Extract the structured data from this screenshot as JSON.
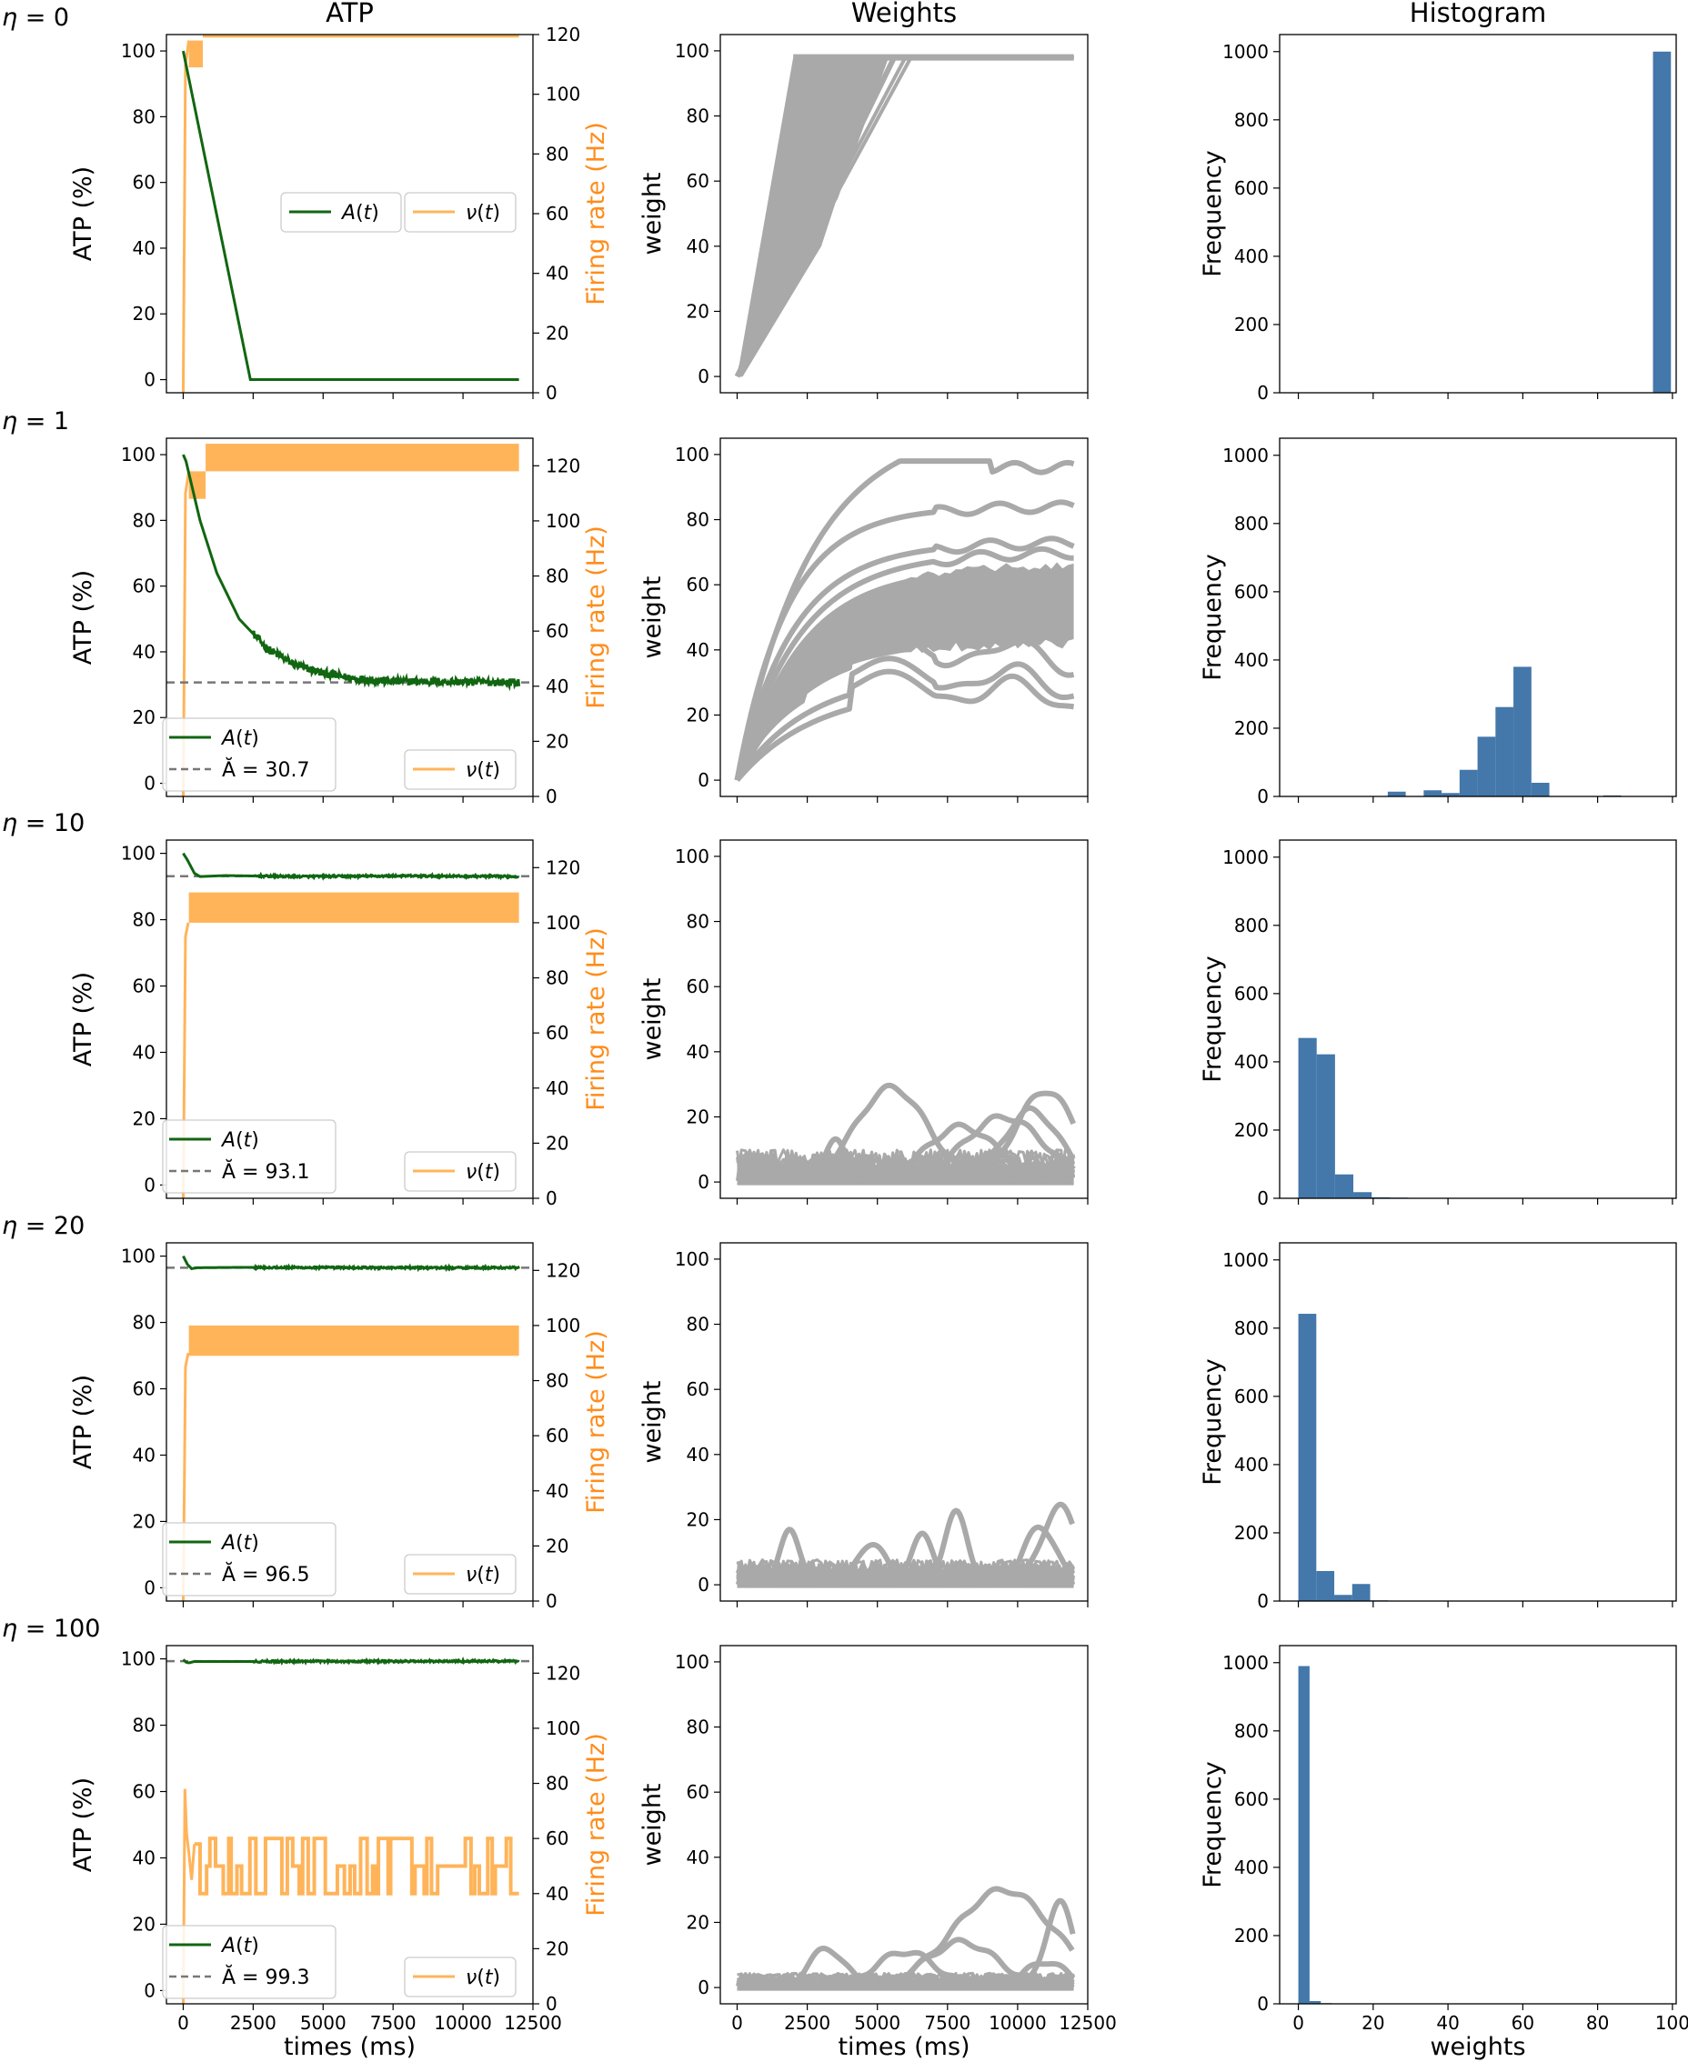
{
  "figure": {
    "column_titles": [
      "ATP",
      "Weights",
      "Histogram"
    ],
    "colors": {
      "atp_line": "#116611",
      "firing_rate": "#ffb45a",
      "firing_axis": "#ff8c1a",
      "mean_line": "#777777",
      "weights": "#a9a9a9",
      "hist_bar": "#4477aa"
    }
  },
  "chart_data": [
    {
      "type": "line",
      "panel": "atp",
      "eta_label": "η = 0",
      "title": "ATP",
      "xlabel": "",
      "ylabel": "ATP (%)",
      "y2label": "Firing rate (Hz)",
      "xlim": [
        -600,
        12500
      ],
      "ylim": [
        -4,
        105
      ],
      "y2lim": [
        0,
        120
      ],
      "xticks": [
        0,
        2500,
        5000,
        7500,
        10000,
        12500
      ],
      "xtick_labels": [
        "",
        "",
        "",
        "",
        "",
        ""
      ],
      "yticks": [
        0,
        20,
        40,
        60,
        80,
        100
      ],
      "ytick_labels": [
        "0",
        "20",
        "40",
        "60",
        "80",
        "100"
      ],
      "y2ticks": [
        0,
        20,
        40,
        60,
        80,
        100,
        120
      ],
      "y2tick_labels": [
        "0",
        "20",
        "40",
        "60",
        "80",
        "100",
        "120"
      ],
      "series": [
        {
          "name": "A(t)",
          "x": [
            0,
            2400,
            12000
          ],
          "y": [
            100,
            0,
            0
          ]
        }
      ],
      "firing_rate": {
        "name": "ν(t)",
        "spike_x": [
          0,
          80,
          200
        ],
        "spike_y": [
          0,
          110,
          118
        ],
        "bands": [
          [
            200,
            700,
            109,
            118
          ],
          [
            700,
            12000,
            119,
            128
          ]
        ]
      },
      "legend_items": [
        "A(t)",
        "ν(t)"
      ],
      "legend_left": "mid-right",
      "legend_right": "mid-right"
    },
    {
      "type": "line",
      "panel": "weights",
      "title": "Weights",
      "xlabel": "",
      "ylabel": "weight",
      "xlim": [
        -600,
        12500
      ],
      "ylim": [
        -5,
        105
      ],
      "xticks": [
        0,
        2500,
        5000,
        7500,
        10000,
        12500
      ],
      "xtick_labels": [
        "",
        "",
        "",
        "",
        "",
        ""
      ],
      "yticks": [
        0,
        20,
        40,
        60,
        80,
        100
      ],
      "ytick_labels": [
        "0",
        "20",
        "40",
        "60",
        "80",
        "100"
      ],
      "mode": "saturate",
      "sat_times": [
        3000,
        3400,
        4000,
        4800,
        5300,
        5600,
        6200,
        3200,
        3700,
        4400,
        5000,
        6000
      ]
    },
    {
      "type": "bar",
      "panel": "hist",
      "title": "Histogram",
      "xlabel": "",
      "ylabel": "Frequency",
      "xlim": [
        -5,
        101
      ],
      "ylim": [
        0,
        1050
      ],
      "xticks": [
        0,
        20,
        40,
        60,
        80,
        100
      ],
      "xtick_labels": [
        "",
        "",
        "",
        "",
        "",
        ""
      ],
      "yticks": [
        0,
        200,
        400,
        600,
        800,
        1000
      ],
      "ytick_labels": [
        "0",
        "200",
        "400",
        "600",
        "800",
        "1000"
      ],
      "bin_edges": [
        94.8,
        99.6
      ],
      "values": [
        1000
      ]
    },
    {
      "type": "line",
      "panel": "atp",
      "eta_label": "η = 1",
      "xlabel": "",
      "ylabel": "ATP (%)",
      "y2label": "Firing rate (Hz)",
      "xlim": [
        -600,
        12500
      ],
      "ylim": [
        -4,
        105
      ],
      "y2lim": [
        0,
        130
      ],
      "xticks": [
        0,
        2500,
        5000,
        7500,
        10000,
        12500
      ],
      "xtick_labels": [
        "",
        "",
        "",
        "",
        "",
        ""
      ],
      "yticks": [
        0,
        20,
        40,
        60,
        80,
        100
      ],
      "ytick_labels": [
        "0",
        "20",
        "40",
        "60",
        "80",
        "100"
      ],
      "y2ticks": [
        0,
        20,
        40,
        60,
        80,
        100,
        120
      ],
      "y2tick_labels": [
        "0",
        "20",
        "40",
        "60",
        "80",
        "100",
        "120"
      ],
      "series": [
        {
          "name": "A(t)",
          "x": [
            0,
            100,
            600,
            1200,
            2000,
            3000,
            4000,
            5000,
            6000,
            7500,
            9000,
            10500,
            12000
          ],
          "y": [
            100,
            98,
            80,
            64,
            50,
            41,
            36,
            33.5,
            32,
            31,
            31,
            30.8,
            30.7
          ]
        }
      ],
      "mean_value": 30.7,
      "mean_label": "Ă = 30.7",
      "firing_rate": {
        "name": "ν(t)",
        "spike_x": [
          0,
          80,
          200
        ],
        "spike_y": [
          0,
          110,
          118
        ],
        "bands": [
          [
            200,
            800,
            108,
            118
          ],
          [
            800,
            12000,
            118,
            128
          ]
        ]
      },
      "legend_items": [
        "A(t)",
        "Ă = 30.7",
        "ν(t)"
      ],
      "legend_left": "lower-left",
      "legend_right": "lower-right"
    },
    {
      "type": "line",
      "panel": "weights",
      "xlabel": "",
      "ylabel": "weight",
      "xlim": [
        -600,
        12500
      ],
      "ylim": [
        -5,
        105
      ],
      "xticks": [
        0,
        2500,
        5000,
        7500,
        10000,
        12500
      ],
      "xtick_labels": [
        "",
        "",
        "",
        "",
        "",
        ""
      ],
      "yticks": [
        0,
        20,
        40,
        60,
        80,
        100
      ],
      "ytick_labels": [
        "0",
        "20",
        "40",
        "60",
        "80",
        "100"
      ],
      "mode": "converge",
      "band_low": 42,
      "band_high": 66,
      "outliers_final": [
        96,
        84,
        73,
        70,
        37,
        29,
        25
      ]
    },
    {
      "type": "bar",
      "panel": "hist",
      "xlabel": "",
      "ylabel": "Frequency",
      "xlim": [
        -5,
        101
      ],
      "ylim": [
        0,
        1050
      ],
      "xticks": [
        0,
        20,
        40,
        60,
        80,
        100
      ],
      "xtick_labels": [
        "",
        "",
        "",
        "",
        "",
        ""
      ],
      "yticks": [
        0,
        200,
        400,
        600,
        800,
        1000
      ],
      "ytick_labels": [
        "0",
        "200",
        "400",
        "600",
        "800",
        "1000"
      ],
      "bin_edges": [
        23.9,
        28.7,
        33.5,
        38.3,
        43.1,
        47.9,
        52.7,
        57.5,
        62.3,
        67.1,
        71.9,
        76.7,
        81.5,
        86.3
      ],
      "values": [
        14,
        0,
        18,
        10,
        78,
        175,
        262,
        380,
        40,
        0,
        0,
        0,
        3
      ]
    },
    {
      "type": "line",
      "panel": "atp",
      "eta_label": "η = 10",
      "xlabel": "",
      "ylabel": "ATP (%)",
      "y2label": "Firing rate (Hz)",
      "xlim": [
        -600,
        12500
      ],
      "ylim": [
        -4,
        104
      ],
      "y2lim": [
        0,
        130
      ],
      "xticks": [
        0,
        2500,
        5000,
        7500,
        10000,
        12500
      ],
      "xtick_labels": [
        "",
        "",
        "",
        "",
        "",
        ""
      ],
      "yticks": [
        0,
        20,
        40,
        60,
        80,
        100
      ],
      "ytick_labels": [
        "0",
        "20",
        "40",
        "60",
        "80",
        "100"
      ],
      "y2ticks": [
        0,
        20,
        40,
        60,
        80,
        100,
        120
      ],
      "y2tick_labels": [
        "0",
        "20",
        "40",
        "60",
        "80",
        "100",
        "120"
      ],
      "series": [
        {
          "name": "A(t)",
          "x": [
            0,
            150,
            400,
            600,
            1500,
            4000,
            8000,
            12000
          ],
          "y": [
            100,
            98,
            94,
            93,
            93.3,
            93,
            93.2,
            93
          ]
        }
      ],
      "mean_value": 93.1,
      "mean_label": "Ă = 93.1",
      "firing_rate": {
        "name": "ν(t)",
        "spike_x": [
          0,
          80,
          180
        ],
        "spike_y": [
          0,
          95,
          100
        ],
        "bands": [
          [
            200,
            12000,
            100,
            111
          ]
        ]
      },
      "legend_items": [
        "A(t)",
        "Ă = 93.1",
        "ν(t)"
      ],
      "legend_left": "lower-left",
      "legend_right": "lower-right"
    },
    {
      "type": "line",
      "panel": "weights",
      "xlabel": "",
      "ylabel": "weight",
      "xlim": [
        -600,
        12500
      ],
      "ylim": [
        -5,
        105
      ],
      "xticks": [
        0,
        2500,
        5000,
        7500,
        10000,
        12500
      ],
      "xtick_labels": [
        "",
        "",
        "",
        "",
        "",
        ""
      ],
      "yticks": [
        0,
        20,
        40,
        60,
        80,
        100
      ],
      "ytick_labels": [
        "0",
        "20",
        "40",
        "60",
        "80",
        "100"
      ],
      "mode": "noise",
      "noise_max": 9,
      "bumps": [
        [
          5500,
          29,
          1800
        ],
        [
          9500,
          20,
          2000
        ],
        [
          11000,
          28,
          1500
        ],
        [
          3500,
          14,
          500
        ],
        [
          8000,
          17,
          1800
        ],
        [
          10500,
          22,
          1400
        ]
      ]
    },
    {
      "type": "bar",
      "panel": "hist",
      "xlabel": "",
      "ylabel": "Frequency",
      "xlim": [
        -5,
        101
      ],
      "ylim": [
        0,
        1050
      ],
      "xticks": [
        0,
        20,
        40,
        60,
        80,
        100
      ],
      "xtick_labels": [
        "",
        "",
        "",
        "",
        "",
        ""
      ],
      "yticks": [
        0,
        200,
        400,
        600,
        800,
        1000
      ],
      "ytick_labels": [
        "0",
        "200",
        "400",
        "600",
        "800",
        "1000"
      ],
      "bin_edges": [
        0,
        4.9,
        9.8,
        14.7,
        19.6,
        24.5,
        29.4
      ],
      "values": [
        470,
        422,
        70,
        18,
        3,
        2
      ]
    },
    {
      "type": "line",
      "panel": "atp",
      "eta_label": "η = 20",
      "xlabel": "",
      "ylabel": "ATP (%)",
      "y2label": "Firing rate (Hz)",
      "xlim": [
        -600,
        12500
      ],
      "ylim": [
        -4,
        104
      ],
      "y2lim": [
        0,
        130
      ],
      "xticks": [
        0,
        2500,
        5000,
        7500,
        10000,
        12500
      ],
      "xtick_labels": [
        "",
        "",
        "",
        "",
        "",
        ""
      ],
      "yticks": [
        0,
        20,
        40,
        60,
        80,
        100
      ],
      "ytick_labels": [
        "0",
        "20",
        "40",
        "60",
        "80",
        "100"
      ],
      "y2ticks": [
        0,
        20,
        40,
        60,
        80,
        100,
        120
      ],
      "y2tick_labels": [
        "0",
        "20",
        "40",
        "60",
        "80",
        "100",
        "120"
      ],
      "series": [
        {
          "name": "A(t)",
          "x": [
            0,
            150,
            300,
            500,
            2000,
            6000,
            12000
          ],
          "y": [
            100,
            97.5,
            96.2,
            96.5,
            96.6,
            96.5,
            96.5
          ]
        }
      ],
      "mean_value": 96.5,
      "mean_label": "Ă = 96.5",
      "firing_rate": {
        "name": "ν(t)",
        "spike_x": [
          0,
          80,
          180
        ],
        "spike_y": [
          0,
          85,
          90
        ],
        "bands": [
          [
            200,
            12000,
            89,
            100
          ]
        ]
      },
      "legend_items": [
        "A(t)",
        "Ă = 96.5",
        "ν(t)"
      ],
      "legend_left": "lower-left",
      "legend_right": "lower-right"
    },
    {
      "type": "line",
      "panel": "weights",
      "xlabel": "",
      "ylabel": "weight",
      "xlim": [
        -600,
        12500
      ],
      "ylim": [
        -5,
        105
      ],
      "xticks": [
        0,
        2500,
        5000,
        7500,
        10000,
        12500
      ],
      "xtick_labels": [
        "",
        "",
        "",
        "",
        "",
        ""
      ],
      "yticks": [
        0,
        20,
        40,
        60,
        80,
        100
      ],
      "ytick_labels": [
        "0",
        "20",
        "40",
        "60",
        "80",
        "100"
      ],
      "mode": "noise",
      "noise_max": 7,
      "bumps": [
        [
          1900,
          17,
          500
        ],
        [
          7800,
          22,
          600
        ],
        [
          11500,
          24,
          900
        ],
        [
          6600,
          15,
          600
        ],
        [
          4800,
          13,
          700
        ],
        [
          10800,
          18,
          800
        ]
      ]
    },
    {
      "type": "bar",
      "panel": "hist",
      "xlabel": "",
      "ylabel": "Frequency",
      "xlim": [
        -5,
        101
      ],
      "ylim": [
        0,
        1050
      ],
      "xticks": [
        0,
        20,
        40,
        60,
        80,
        100
      ],
      "xtick_labels": [
        "",
        "",
        "",
        "",
        "",
        ""
      ],
      "yticks": [
        0,
        200,
        400,
        600,
        800,
        1000
      ],
      "ytick_labels": [
        "0",
        "200",
        "400",
        "600",
        "800",
        "1000"
      ],
      "bin_edges": [
        0,
        4.8,
        9.6,
        14.4,
        19.2,
        24.0
      ],
      "values": [
        842,
        88,
        18,
        50,
        2
      ]
    },
    {
      "type": "line",
      "panel": "atp",
      "eta_label": "η = 100",
      "xlabel": "times (ms)",
      "ylabel": "ATP (%)",
      "y2label": "Firing rate (Hz)",
      "xlim": [
        -600,
        12500
      ],
      "ylim": [
        -4,
        104
      ],
      "y2lim": [
        0,
        130
      ],
      "xticks": [
        0,
        2500,
        5000,
        7500,
        10000,
        12500
      ],
      "xtick_labels": [
        "0",
        "2500",
        "5000",
        "7500",
        "10000",
        "12500"
      ],
      "yticks": [
        0,
        20,
        40,
        60,
        80,
        100
      ],
      "ytick_labels": [
        "0",
        "20",
        "40",
        "60",
        "80",
        "100"
      ],
      "y2ticks": [
        0,
        20,
        40,
        60,
        80,
        100,
        120
      ],
      "y2tick_labels": [
        "0",
        "20",
        "40",
        "60",
        "80",
        "100",
        "120"
      ],
      "series": [
        {
          "name": "A(t)",
          "x": [
            0,
            100,
            200,
            400,
            12000
          ],
          "y": [
            99.8,
            99,
            98.8,
            99.2,
            99.3
          ]
        }
      ],
      "mean_value": 99.3,
      "mean_label": "Ă = 99.3",
      "firing_rate": {
        "name": "ν(t)",
        "spike_x": [
          0,
          60,
          120,
          200,
          300,
          400
        ],
        "spike_y": [
          0,
          78,
          62,
          55,
          45,
          58
        ],
        "levels": [
          40,
          50,
          60
        ],
        "dwell_ms": 180
      },
      "legend_items": [
        "A(t)",
        "Ă = 99.3",
        "ν(t)"
      ],
      "legend_left": "lower-left",
      "legend_right": "lower-right"
    },
    {
      "type": "line",
      "panel": "weights",
      "xlabel": "times (ms)",
      "ylabel": "weight",
      "xlim": [
        -600,
        12500
      ],
      "ylim": [
        -5,
        105
      ],
      "xticks": [
        0,
        2500,
        5000,
        7500,
        10000,
        12500
      ],
      "xtick_labels": [
        "0",
        "2500",
        "5000",
        "7500",
        "10000",
        "12500"
      ],
      "yticks": [
        0,
        20,
        40,
        60,
        80,
        100
      ],
      "ytick_labels": [
        "0",
        "20",
        "40",
        "60",
        "80",
        "100"
      ],
      "mode": "noise",
      "noise_max": 4,
      "bumps": [
        [
          9500,
          30,
          2500
        ],
        [
          8000,
          14,
          1800
        ],
        [
          3200,
          12,
          900
        ],
        [
          11500,
          26,
          700
        ],
        [
          6000,
          11,
          1500
        ],
        [
          11000,
          8,
          1000
        ]
      ]
    },
    {
      "type": "bar",
      "panel": "hist",
      "xlabel": "weights",
      "ylabel": "Frequency",
      "xlim": [
        -5,
        101
      ],
      "ylim": [
        0,
        1050
      ],
      "xticks": [
        0,
        20,
        40,
        60,
        80,
        100
      ],
      "xtick_labels": [
        "0",
        "20",
        "40",
        "60",
        "80",
        "100"
      ],
      "yticks": [
        0,
        200,
        400,
        600,
        800,
        1000
      ],
      "ytick_labels": [
        "0",
        "200",
        "400",
        "600",
        "800",
        "1000"
      ],
      "bin_edges": [
        0,
        3.0,
        6.0,
        9.0
      ],
      "values": [
        990,
        8,
        2
      ]
    }
  ]
}
